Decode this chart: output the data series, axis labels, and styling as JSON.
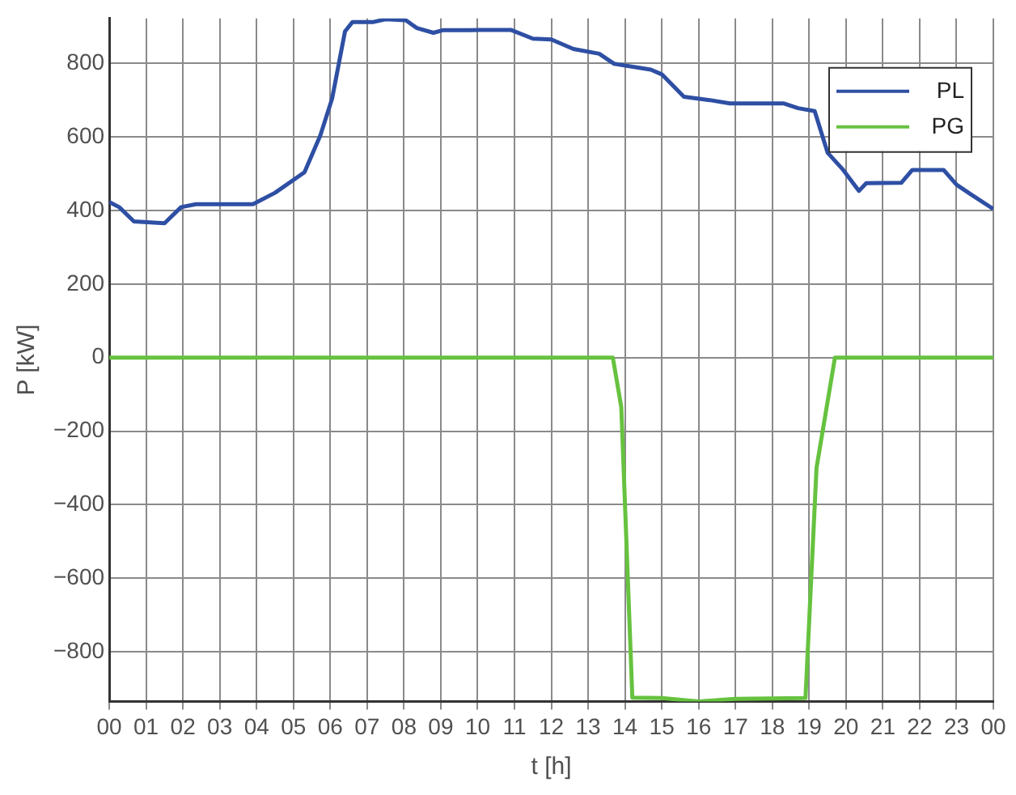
{
  "chart_data": {
    "type": "line",
    "xlabel": "t [h]",
    "ylabel": "P [kW]",
    "xlim": [
      0,
      24
    ],
    "ylim": [
      -935,
      922
    ],
    "xticks": [
      {
        "value": 0,
        "label": "00"
      },
      {
        "value": 1,
        "label": "01"
      },
      {
        "value": 2,
        "label": "02"
      },
      {
        "value": 3,
        "label": "03"
      },
      {
        "value": 4,
        "label": "04"
      },
      {
        "value": 5,
        "label": "05"
      },
      {
        "value": 6,
        "label": "06"
      },
      {
        "value": 7,
        "label": "07"
      },
      {
        "value": 8,
        "label": "08"
      },
      {
        "value": 9,
        "label": "09"
      },
      {
        "value": 10,
        "label": "10"
      },
      {
        "value": 11,
        "label": "11"
      },
      {
        "value": 12,
        "label": "12"
      },
      {
        "value": 13,
        "label": "13"
      },
      {
        "value": 14,
        "label": "14"
      },
      {
        "value": 15,
        "label": "15"
      },
      {
        "value": 16,
        "label": "16"
      },
      {
        "value": 17,
        "label": "17"
      },
      {
        "value": 18,
        "label": "18"
      },
      {
        "value": 19,
        "label": "19"
      },
      {
        "value": 20,
        "label": "20"
      },
      {
        "value": 21,
        "label": "21"
      },
      {
        "value": 22,
        "label": "22"
      },
      {
        "value": 23,
        "label": "23"
      },
      {
        "value": 24,
        "label": "00"
      }
    ],
    "yticks": [
      {
        "value": -800,
        "label": "−800"
      },
      {
        "value": -600,
        "label": "−600"
      },
      {
        "value": -400,
        "label": "−400"
      },
      {
        "value": -200,
        "label": "−200"
      },
      0,
      200,
      400,
      600,
      800
    ],
    "grid": true,
    "legend": "top right",
    "marker": "none",
    "line_style": "solid",
    "series": [
      {
        "name": "PL",
        "color": "#2e4fa3",
        "x": [
          0,
          0.27,
          0.67,
          1.5,
          1.95,
          2.35,
          3.9,
          4.5,
          5.3,
          5.73,
          6.05,
          6.4,
          6.6,
          7.15,
          7.5,
          8.05,
          8.35,
          8.8,
          9.05,
          9.8,
          10.05,
          10.9,
          11.5,
          12.0,
          12.6,
          13.3,
          13.7,
          14.7,
          15.0,
          15.6,
          16.3,
          16.85,
          18.3,
          18.7,
          19.15,
          19.5,
          19.9,
          20.35,
          20.55,
          21.5,
          21.8,
          22.65,
          23.0,
          23.4,
          24
        ],
        "values": [
          423,
          409,
          370,
          365,
          409,
          417,
          417,
          448,
          504,
          604,
          704,
          887,
          912,
          912,
          920,
          917,
          896,
          883,
          890,
          890,
          891,
          891,
          867,
          865,
          839,
          826,
          799,
          783,
          770,
          709,
          700,
          691,
          691,
          678,
          670,
          557,
          513,
          453,
          474,
          475,
          510,
          510,
          470,
          443,
          404
        ]
      },
      {
        "name": "PG",
        "color": "#66c23f",
        "x": [
          0,
          13.67,
          13.9,
          14.2,
          15.0,
          16.0,
          17.0,
          18.9,
          19.2,
          19.7,
          24
        ],
        "values": [
          0,
          0,
          -135,
          -925,
          -926,
          -935,
          -928,
          -926,
          -300,
          0,
          0
        ]
      }
    ]
  }
}
